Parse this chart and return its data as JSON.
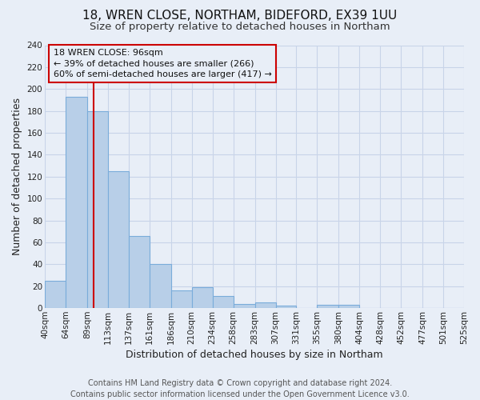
{
  "title": "18, WREN CLOSE, NORTHAM, BIDEFORD, EX39 1UU",
  "subtitle": "Size of property relative to detached houses in Northam",
  "xlabel": "Distribution of detached houses by size in Northam",
  "ylabel": "Number of detached properties",
  "bin_edges": [
    40,
    64,
    89,
    113,
    137,
    161,
    186,
    210,
    234,
    258,
    283,
    307,
    331,
    355,
    380,
    404,
    428,
    452,
    477,
    501,
    525
  ],
  "bin_counts": [
    25,
    193,
    180,
    125,
    66,
    40,
    16,
    19,
    11,
    4,
    5,
    2,
    0,
    3,
    3,
    0,
    0,
    0,
    0,
    0
  ],
  "bar_color": "#b8cfe8",
  "bar_edge_color": "#7aacda",
  "vline_x": 96,
  "vline_color": "#cc0000",
  "annotation_text": "18 WREN CLOSE: 96sqm\n← 39% of detached houses are smaller (266)\n60% of semi-detached houses are larger (417) →",
  "ylim": [
    0,
    240
  ],
  "yticks": [
    0,
    20,
    40,
    60,
    80,
    100,
    120,
    140,
    160,
    180,
    200,
    220,
    240
  ],
  "tick_labels": [
    "40sqm",
    "64sqm",
    "89sqm",
    "113sqm",
    "137sqm",
    "161sqm",
    "186sqm",
    "210sqm",
    "234sqm",
    "258sqm",
    "283sqm",
    "307sqm",
    "331sqm",
    "355sqm",
    "380sqm",
    "404sqm",
    "428sqm",
    "452sqm",
    "477sqm",
    "501sqm",
    "525sqm"
  ],
  "footer_text": "Contains HM Land Registry data © Crown copyright and database right 2024.\nContains public sector information licensed under the Open Government Licence v3.0.",
  "background_color": "#e8eef7",
  "grid_color": "#c8d4e8",
  "title_fontsize": 11,
  "subtitle_fontsize": 9.5,
  "axis_label_fontsize": 9,
  "tick_fontsize": 7.5,
  "annotation_fontsize": 8,
  "footer_fontsize": 7
}
